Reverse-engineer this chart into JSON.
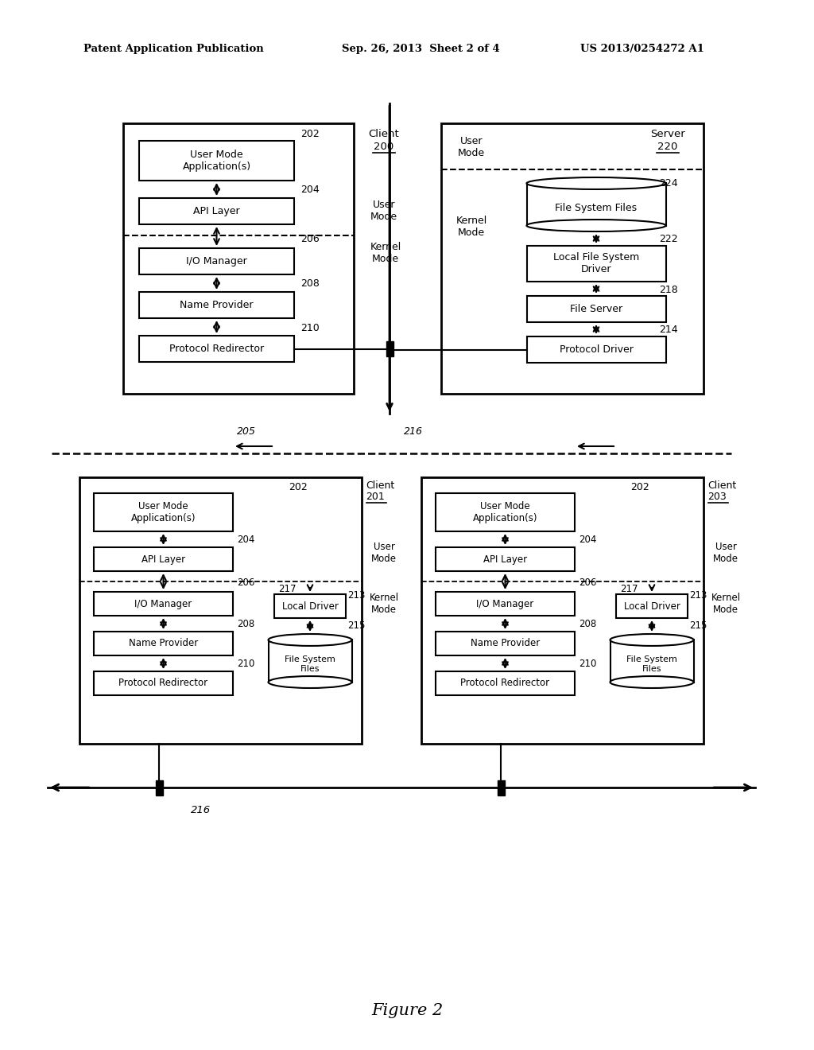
{
  "header_left": "Patent Application Publication",
  "header_mid": "Sep. 26, 2013  Sheet 2 of 4",
  "header_right": "US 2013/0254272 A1",
  "figure_label": "Figure 2",
  "bg_color": "#ffffff"
}
